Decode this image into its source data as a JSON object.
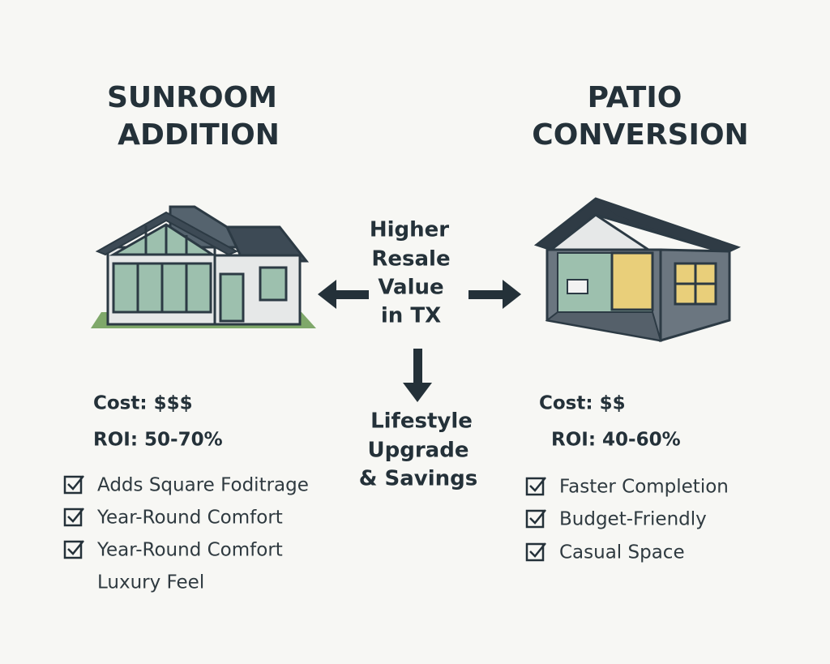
{
  "left": {
    "title": [
      "SUNROOM",
      "ADDITION"
    ],
    "cost": "Cost: $$$",
    "roi": "ROI: 50-70%",
    "features": [
      "Adds Square Foditrage",
      "Year-Round Comfort",
      "Year-Round Comfort"
    ],
    "extra_line": "Luxury Feel"
  },
  "center": {
    "top": [
      "Higher",
      "Resale",
      "Value",
      "in TX"
    ],
    "bottom": [
      "Lifestyle",
      "Upgrade",
      "& Savings"
    ]
  },
  "right": {
    "title": [
      "PATIO",
      "CONVERSION"
    ],
    "cost": "Cost: $$",
    "roi": "ROI: 40-60%",
    "features": [
      "Faster Completion",
      "Budget-Friendly",
      "Casual Space"
    ]
  }
}
